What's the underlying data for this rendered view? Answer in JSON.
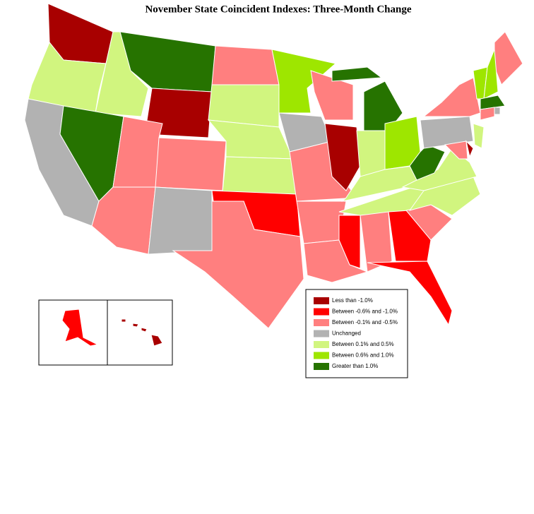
{
  "title": "November State Coincident Indexes: Three-Month Change",
  "legend": {
    "items": [
      {
        "label": "Less than -1.0%",
        "color": "#a80000"
      },
      {
        "label": "Between -0.6% and -1.0%",
        "color": "#ff0000"
      },
      {
        "label": "Between -0.1% and -0.5%",
        "color": "#ff7f7f"
      },
      {
        "label": "Unchanged",
        "color": "#b2b2b2"
      },
      {
        "label": "Between 0.1% and 0.5%",
        "color": "#d1f57f"
      },
      {
        "label": "Between 0.6% and 1.0%",
        "color": "#9ee600"
      },
      {
        "label": "Greater than 1.0%",
        "color": "#267300"
      }
    ]
  }
}
